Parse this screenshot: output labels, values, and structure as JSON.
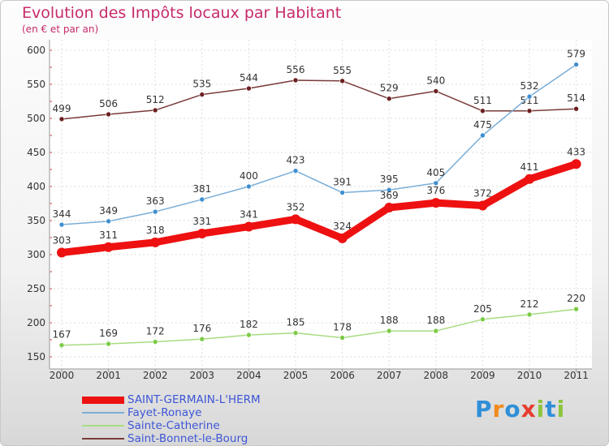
{
  "header": {
    "title": "Evolution des Impôts locaux par Habitant",
    "subtitle": "(en € et par an)"
  },
  "logo": {
    "text": "Proxiti",
    "colors": [
      "#2f8fd8",
      "#f08a1c",
      "#2f8fd8",
      "#e63d2e",
      "#8cc63f",
      "#2f8fd8",
      "#8cc63f"
    ]
  },
  "chart_data": {
    "type": "line",
    "x": [
      "2000",
      "2001",
      "2002",
      "2003",
      "2004",
      "2005",
      "2006",
      "2007",
      "2008",
      "2009",
      "2010",
      "2011"
    ],
    "ylim": [
      150,
      600
    ],
    "yticks": [
      150,
      200,
      250,
      300,
      350,
      400,
      450,
      500,
      550,
      600
    ],
    "grid": true,
    "legend_position": "bottom-left",
    "series": [
      {
        "name": "SAINT-GERMAIN-L'HERM",
        "color": "#ee1111",
        "marker": "#ee1111",
        "values": [
          303,
          311,
          318,
          331,
          341,
          352,
          324,
          369,
          376,
          372,
          411,
          433
        ]
      },
      {
        "name": "Fayet-Ronaye",
        "color": "#7aaed8",
        "marker": "#3f8fd0",
        "values": [
          344,
          349,
          363,
          381,
          400,
          423,
          391,
          395,
          405,
          475,
          532,
          579
        ]
      },
      {
        "name": "Sainte-Catherine",
        "color": "#a8dc82",
        "marker": "#7ccb46",
        "values": [
          167,
          169,
          172,
          176,
          182,
          185,
          178,
          188,
          188,
          205,
          212,
          220
        ]
      },
      {
        "name": "Saint-Bonnet-le-Bourg",
        "color": "#7a3a3a",
        "marker": "#6b1f1f",
        "values": [
          499,
          506,
          512,
          535,
          544,
          556,
          555,
          529,
          540,
          511,
          511,
          514
        ]
      }
    ]
  }
}
